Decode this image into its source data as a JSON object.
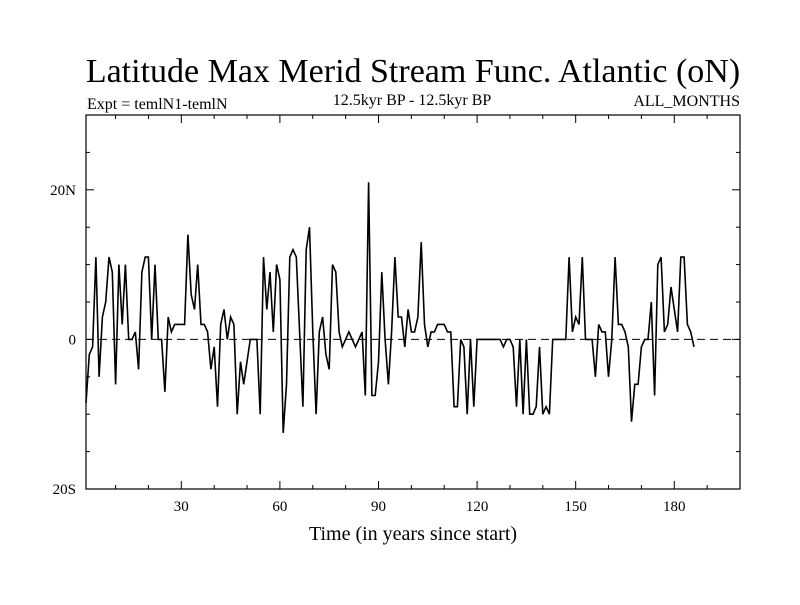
{
  "chart_data": {
    "type": "line",
    "title": "Latitude Max Merid Stream Func. Atlantic (oN)",
    "subtitle_left": "Expt = temlN1-temlN",
    "subtitle_center": "12.5kyr BP - 12.5kyr BP",
    "subtitle_right": "ALL_MONTHS",
    "xlabel": "Time (in years since start)",
    "ylabel": "",
    "xlim": [
      1,
      200
    ],
    "ylim": [
      -20,
      30
    ],
    "x_ticks": [
      30,
      60,
      90,
      120,
      150,
      180
    ],
    "x_tick_labels": [
      "30",
      "60",
      "90",
      "120",
      "150",
      "180"
    ],
    "y_ticks": [
      -20,
      0,
      20
    ],
    "y_tick_labels": [
      "20S",
      "0",
      "20N"
    ],
    "reference_line": 0,
    "grid": false,
    "series": [
      {
        "name": "",
        "x_start": 1,
        "x_step": 1,
        "values": [
          -8.5,
          -2,
          -1,
          11,
          -5,
          3,
          5,
          11,
          9,
          -6,
          10,
          2,
          10,
          0,
          0,
          1,
          -4,
          9,
          11,
          11,
          0,
          10,
          0,
          0,
          -7,
          3,
          1,
          2,
          2,
          2,
          2,
          14,
          6,
          4,
          10,
          2,
          2,
          1,
          -4,
          -1,
          -9,
          2,
          4,
          0,
          3,
          2,
          -10,
          -3,
          -6,
          -3,
          0,
          0,
          0,
          -10,
          11,
          4,
          9,
          1,
          10,
          8,
          -12.5,
          -6,
          11,
          12,
          11,
          1,
          -9,
          12,
          15,
          1,
          -10,
          1,
          3,
          -2,
          -4,
          10,
          9,
          1,
          -1,
          0,
          1,
          0,
          -1,
          0,
          1,
          -7.5,
          21,
          -7.5,
          -7.5,
          -3,
          9,
          0,
          -6,
          1,
          11,
          3,
          3,
          -1,
          4,
          1,
          1,
          3,
          13,
          2,
          -1,
          1,
          1,
          2,
          2,
          2,
          1,
          1,
          -9,
          -9,
          0,
          -1,
          -10,
          0,
          -9,
          0,
          0,
          0,
          0,
          0,
          0,
          0,
          0,
          -1,
          0,
          0,
          -1,
          -9,
          0,
          -10,
          0,
          -10,
          -10,
          -9,
          -1,
          -10,
          -9,
          -10,
          0,
          0,
          0,
          0,
          0,
          11,
          1,
          3,
          2,
          11,
          0,
          0,
          0,
          -5,
          2,
          1,
          1,
          -5,
          0,
          11,
          2,
          2,
          1,
          -1,
          -11,
          -6,
          -6,
          -1,
          0,
          0,
          5,
          -7.5,
          10,
          11,
          1,
          2,
          7,
          4,
          1,
          11,
          11,
          2,
          1,
          -1
        ]
      }
    ]
  }
}
